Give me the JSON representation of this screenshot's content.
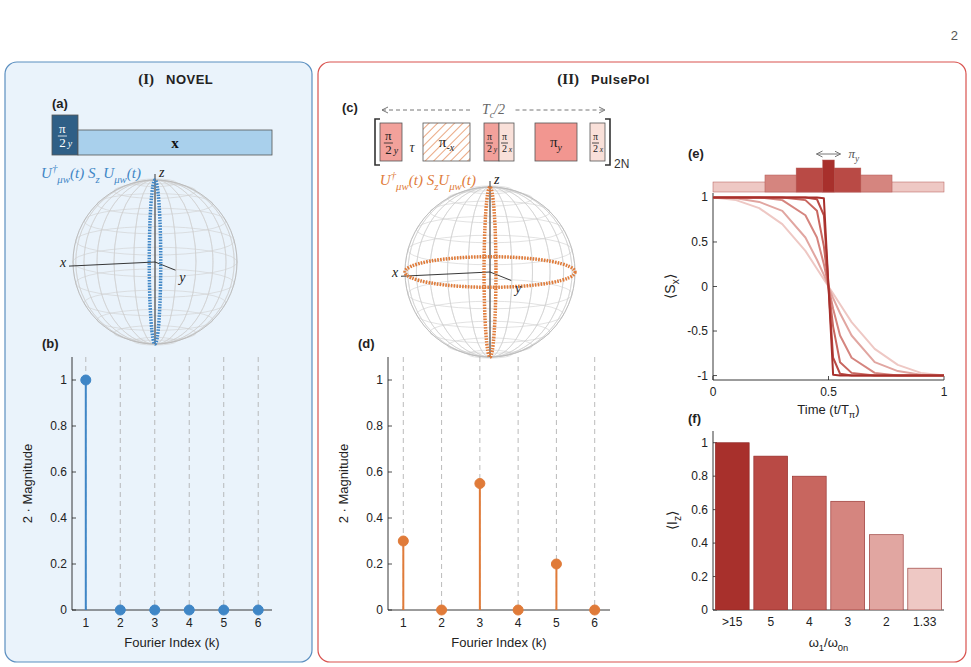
{
  "page_number": "2",
  "panels": [
    {
      "number": "(I)",
      "title": "NOVEL",
      "pulse_diagram": {
        "letter": "(a)",
        "pulses": [
          {
            "numerator": "π",
            "denominator": "2",
            "sub": "y"
          },
          {
            "label": "x"
          }
        ]
      },
      "sphere": {
        "color": "#3f86c6",
        "label_parts": [
          {
            "t": "U"
          },
          {
            "sup": "†"
          },
          {
            "sub": "μw"
          },
          {
            "t": "(t) S"
          },
          {
            "sub": "z"
          },
          {
            "t": " U"
          },
          {
            "sub": "μw"
          },
          {
            "t": "(t)"
          }
        ],
        "axes": {
          "x": "x",
          "y": "y",
          "z": "z"
        }
      }
    },
    {
      "number": "(II)",
      "title": "PulsePol",
      "pulse_diagram": {
        "letter": "(c)",
        "period_parts": [
          {
            "t": "T"
          },
          {
            "sub": "c"
          },
          {
            "t": "/2"
          }
        ],
        "spacing": "τ",
        "repeat": "2N",
        "pulses": [
          {
            "numerator": "π",
            "denominator": "2",
            "sub": "y"
          },
          {
            "label": "π",
            "sub": "-x"
          },
          {
            "numerator": "π",
            "denominator": "2",
            "sub": "y"
          },
          {
            "numerator": "π",
            "denominator": "2",
            "sub": "x"
          },
          {
            "label": "π",
            "sub": "y"
          },
          {
            "numerator": "π",
            "denominator": "2",
            "sub": "x"
          }
        ]
      },
      "sphere": {
        "color": "#e07b39",
        "label_parts": [
          {
            "t": "U"
          },
          {
            "sup": "†"
          },
          {
            "sub": "μw"
          },
          {
            "t": "(t) S"
          },
          {
            "sub": "z"
          },
          {
            "t": "U"
          },
          {
            "sub": "μw"
          },
          {
            "t": "(t)"
          }
        ],
        "axes": {
          "x": "x",
          "y": "y",
          "z": "z"
        }
      }
    }
  ],
  "chart_data": [
    {
      "type": "stem",
      "letter": "(b)",
      "x_label": "Fourier Index (k)",
      "y_label": "2 · Magnitude",
      "x": [
        1,
        2,
        3,
        4,
        5,
        6
      ],
      "values": [
        1,
        0,
        0,
        0,
        0,
        0
      ],
      "color": "#3f86c6",
      "xlim": [
        0.6,
        6.4
      ],
      "xticks": [
        1,
        2,
        3,
        4,
        5,
        6
      ],
      "ylim": [
        0,
        1.1
      ],
      "yticks": [
        0,
        0.2,
        0.4,
        0.6,
        0.8,
        1
      ],
      "grid": true
    },
    {
      "type": "stem",
      "letter": "(d)",
      "x_label": "Fourier Index (k)",
      "y_label": "2 · Magnitude",
      "x": [
        1,
        2,
        3,
        4,
        5,
        6
      ],
      "values": [
        0.3,
        0,
        0.55,
        0,
        0.2,
        0
      ],
      "color": "#e07b39",
      "xlim": [
        0.6,
        6.4
      ],
      "xticks": [
        1,
        2,
        3,
        4,
        5,
        6
      ],
      "ylim": [
        0,
        1.1
      ],
      "yticks": [
        0,
        0.2,
        0.4,
        0.6,
        0.8,
        1
      ],
      "grid": true
    },
    {
      "type": "line",
      "letter": "(e)",
      "x_label_parts": [
        {
          "t": "Time (t/T"
        },
        {
          "sub": "π"
        },
        {
          "t": ")"
        }
      ],
      "y_label_parts": [
        {
          "t": "⟨S"
        },
        {
          "sub": "x"
        },
        {
          "t": "⟩"
        }
      ],
      "pulse_label_parts": [
        {
          "t": "π"
        },
        {
          "sub": "y"
        }
      ],
      "x": [
        0,
        0.1,
        0.2,
        0.3,
        0.4,
        0.45,
        0.48,
        0.5,
        0.52,
        0.55,
        0.6,
        0.7,
        0.8,
        0.9,
        1
      ],
      "series": [
        {
          "color": "#a8302c",
          "values": [
            1,
            1,
            1,
            1,
            1,
            1,
            0.99,
            0,
            -0.99,
            -1,
            -1,
            -1,
            -1,
            -1,
            -1
          ]
        },
        {
          "color": "#b94a45",
          "values": [
            1,
            1,
            1,
            1,
            1,
            0.98,
            0.8,
            0,
            -0.8,
            -0.98,
            -1,
            -1,
            -1,
            -1,
            -1
          ]
        },
        {
          "color": "#c8665f",
          "values": [
            1,
            1,
            1,
            1,
            0.97,
            0.85,
            0.45,
            0,
            -0.45,
            -0.85,
            -0.97,
            -1,
            -1,
            -1,
            -1
          ]
        },
        {
          "color": "#d5857f",
          "values": [
            1,
            1,
            1,
            0.97,
            0.8,
            0.55,
            0.25,
            0,
            -0.25,
            -0.55,
            -0.8,
            -0.97,
            -1,
            -1,
            -1
          ]
        },
        {
          "color": "#e1a6a1",
          "values": [
            1,
            0.99,
            0.95,
            0.85,
            0.55,
            0.3,
            0.13,
            0,
            -0.13,
            -0.3,
            -0.55,
            -0.85,
            -0.95,
            -0.99,
            -1
          ]
        },
        {
          "color": "#eec8c4",
          "values": [
            1,
            0.97,
            0.88,
            0.7,
            0.4,
            0.2,
            0.08,
            0,
            -0.08,
            -0.2,
            -0.4,
            -0.7,
            -0.88,
            -0.97,
            -1
          ]
        }
      ],
      "xlim": [
        0,
        1
      ],
      "xticks": [
        0,
        0.5,
        1
      ],
      "ylim": [
        -1.05,
        1.05
      ],
      "yticks": [
        -1,
        -0.5,
        0,
        0.5,
        1
      ]
    },
    {
      "type": "bar",
      "letter": "(f)",
      "x_label_parts": [
        {
          "t": "ω"
        },
        {
          "sub": "1"
        },
        {
          "t": "/ω"
        },
        {
          "sub": "0n"
        }
      ],
      "y_label_parts": [
        {
          "t": "⟨I"
        },
        {
          "sub": "z"
        },
        {
          "t": "⟩"
        }
      ],
      "categories": [
        ">15",
        "5",
        "4",
        "3",
        "2",
        "1.33"
      ],
      "values": [
        1,
        0.92,
        0.8,
        0.65,
        0.45,
        0.25
      ],
      "colors": [
        "#a8302c",
        "#b94a45",
        "#c8665f",
        "#d5857f",
        "#e1a6a1",
        "#eec8c4"
      ],
      "ylim": [
        0,
        1.07
      ],
      "yticks": [
        0,
        0.2,
        0.4,
        0.6,
        0.8,
        1
      ]
    }
  ]
}
